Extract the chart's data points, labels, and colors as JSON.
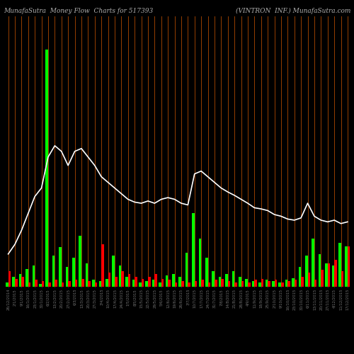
{
  "title_left": "MunafaSutra  Money Flow  Charts for 517393",
  "title_right": "(VINTRON  INF.) MunafaSutra.com",
  "background_color": "#000000",
  "categories": [
    "26/12/2014",
    "2/1/2015",
    "9/1/2015",
    "16/1/2015",
    "23/1/2015",
    "30/1/2015",
    "6/2/2015",
    "13/2/2015",
    "20/2/2015",
    "27/2/2015",
    "6/3/2015",
    "13/3/2015",
    "20/3/2015",
    "27/3/2015",
    "3/4/2015",
    "10/4/2015",
    "17/4/2015",
    "24/4/2015",
    "1/5/2015",
    "8/5/2015",
    "15/5/2015",
    "22/5/2015",
    "29/5/2015",
    "5/6/2015",
    "12/6/2015",
    "19/6/2015",
    "26/6/2015",
    "3/7/2015",
    "10/7/2015",
    "17/7/2015",
    "24/7/2015",
    "31/7/2015",
    "7/8/2015",
    "14/8/2015",
    "21/8/2015",
    "28/8/2015",
    "4/9/2015",
    "11/9/2015",
    "18/9/2015",
    "25/9/2015",
    "2/10/2015",
    "9/10/2015",
    "16/10/2015",
    "23/10/2015",
    "30/10/2015",
    "6/11/2015",
    "13/11/2015",
    "20/11/2015",
    "27/11/2015",
    "4/12/2015",
    "11/12/2015",
    "17/12/2015"
  ],
  "green_bars": [
    8,
    18,
    22,
    32,
    38,
    5,
    420,
    55,
    70,
    35,
    52,
    90,
    42,
    12,
    10,
    14,
    55,
    38,
    18,
    12,
    8,
    10,
    12,
    8,
    20,
    22,
    18,
    60,
    130,
    85,
    52,
    28,
    18,
    22,
    28,
    18,
    14,
    10,
    8,
    12,
    10,
    8,
    12,
    15,
    35,
    55,
    85,
    58,
    42,
    38,
    78,
    72
  ],
  "red_bars": [
    28,
    14,
    18,
    8,
    12,
    10,
    8,
    12,
    8,
    10,
    12,
    14,
    10,
    8,
    75,
    25,
    18,
    28,
    22,
    18,
    14,
    18,
    22,
    14,
    12,
    8,
    10,
    8,
    10,
    12,
    8,
    12,
    14,
    10,
    8,
    10,
    8,
    12,
    14,
    10,
    12,
    8,
    10,
    12,
    18,
    25,
    12,
    30,
    42,
    48,
    28,
    72
  ],
  "line_values": [
    58,
    75,
    100,
    130,
    160,
    175,
    230,
    250,
    240,
    215,
    240,
    245,
    230,
    215,
    195,
    185,
    175,
    165,
    155,
    150,
    148,
    152,
    148,
    155,
    158,
    155,
    148,
    145,
    200,
    205,
    195,
    185,
    175,
    168,
    162,
    155,
    148,
    140,
    138,
    135,
    128,
    125,
    120,
    118,
    122,
    148,
    125,
    118,
    115,
    118,
    112,
    115
  ],
  "line_color": "#ffffff",
  "green_color": "#00ff00",
  "red_color": "#ff0000",
  "orange_line_color": "#cc5500",
  "title_color": "#b0b0b0",
  "tick_color": "#707070",
  "title_fontsize": 6.5,
  "tick_fontsize": 3.8,
  "ylim_max": 480,
  "bar_width": 0.38
}
